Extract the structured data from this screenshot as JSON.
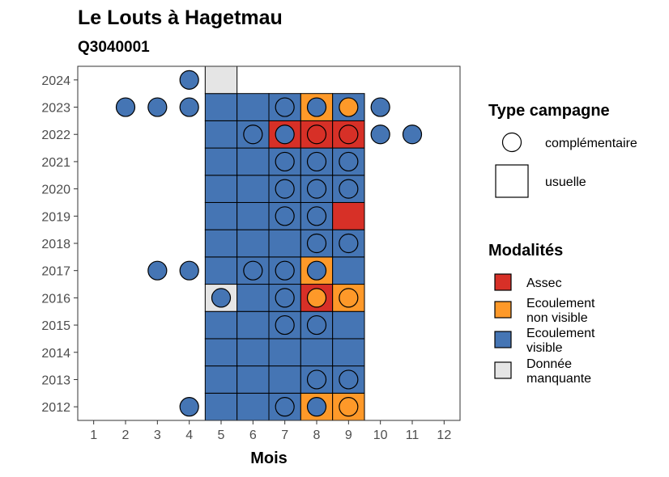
{
  "title": "Le Louts à Hagetmau",
  "subtitle": "Q3040001",
  "chart_data": {
    "type": "heatmap",
    "title": "Le Louts à Hagetmau",
    "subtitle": "Q3040001",
    "xlabel": "Mois",
    "ylabel": "",
    "x_ticks": [
      "1",
      "2",
      "3",
      "4",
      "5",
      "6",
      "7",
      "8",
      "9",
      "10",
      "11",
      "12"
    ],
    "y_ticks": [
      "2012",
      "2013",
      "2014",
      "2015",
      "2016",
      "2017",
      "2018",
      "2019",
      "2020",
      "2021",
      "2022",
      "2023",
      "2024"
    ],
    "xlim": [
      0.5,
      12.5
    ],
    "ylim": [
      2011.5,
      2024.5
    ],
    "grid": false,
    "legend_position": "right",
    "legend_shape": {
      "title": "Type campagne",
      "items": [
        {
          "label": "complémentaire",
          "shape": "circle"
        },
        {
          "label": "usuelle",
          "shape": "square"
        }
      ]
    },
    "legend_fill": {
      "title": "Modalités",
      "items": [
        {
          "key": "assec",
          "label_lines": [
            "Assec"
          ],
          "color": "#d73027"
        },
        {
          "key": "nonvisible",
          "label_lines": [
            "Ecoulement",
            "non visible"
          ],
          "color": "#fe9929"
        },
        {
          "key": "visible",
          "label_lines": [
            "Ecoulement",
            "visible"
          ],
          "color": "#4575b4"
        },
        {
          "key": "missing",
          "label_lines": [
            "Donnée",
            "manquante"
          ],
          "color": "#e5e5e5"
        }
      ]
    },
    "usuelle": [
      {
        "year": 2012,
        "months": [
          5,
          6,
          7,
          8,
          9
        ],
        "values": [
          "visible",
          "visible",
          "visible",
          "nonvisible",
          "nonvisible"
        ]
      },
      {
        "year": 2013,
        "months": [
          5,
          6,
          7,
          8,
          9
        ],
        "values": [
          "visible",
          "visible",
          "visible",
          "visible",
          "visible"
        ]
      },
      {
        "year": 2014,
        "months": [
          5,
          6,
          7,
          8,
          9
        ],
        "values": [
          "visible",
          "visible",
          "visible",
          "visible",
          "visible"
        ]
      },
      {
        "year": 2015,
        "months": [
          5,
          6,
          7,
          8,
          9
        ],
        "values": [
          "visible",
          "visible",
          "visible",
          "visible",
          "visible"
        ]
      },
      {
        "year": 2016,
        "months": [
          5,
          6,
          7,
          8,
          9
        ],
        "values": [
          "missing",
          "visible",
          "visible",
          "assec",
          "nonvisible"
        ]
      },
      {
        "year": 2017,
        "months": [
          5,
          6,
          7,
          8,
          9
        ],
        "values": [
          "visible",
          "visible",
          "visible",
          "nonvisible",
          "visible"
        ]
      },
      {
        "year": 2018,
        "months": [
          5,
          6,
          7,
          8,
          9
        ],
        "values": [
          "visible",
          "visible",
          "visible",
          "visible",
          "visible"
        ]
      },
      {
        "year": 2019,
        "months": [
          5,
          6,
          7,
          8,
          9
        ],
        "values": [
          "visible",
          "visible",
          "visible",
          "visible",
          "assec"
        ]
      },
      {
        "year": 2020,
        "months": [
          5,
          6,
          7,
          8,
          9
        ],
        "values": [
          "visible",
          "visible",
          "visible",
          "visible",
          "visible"
        ]
      },
      {
        "year": 2021,
        "months": [
          5,
          6,
          7,
          8,
          9
        ],
        "values": [
          "visible",
          "visible",
          "visible",
          "visible",
          "visible"
        ]
      },
      {
        "year": 2022,
        "months": [
          5,
          6,
          7,
          8,
          9
        ],
        "values": [
          "visible",
          "visible",
          "assec",
          "assec",
          "assec"
        ]
      },
      {
        "year": 2023,
        "months": [
          5,
          6,
          7,
          8,
          9
        ],
        "values": [
          "visible",
          "visible",
          "visible",
          "nonvisible",
          "visible"
        ]
      },
      {
        "year": 2024,
        "months": [
          5
        ],
        "values": [
          "missing"
        ]
      }
    ],
    "complementaire": [
      {
        "year": 2012,
        "month": 4,
        "value": "visible"
      },
      {
        "year": 2012,
        "month": 7,
        "value": "visible"
      },
      {
        "year": 2012,
        "month": 8,
        "value": "visible"
      },
      {
        "year": 2012,
        "month": 9,
        "value": "nonvisible"
      },
      {
        "year": 2013,
        "month": 8,
        "value": "visible"
      },
      {
        "year": 2013,
        "month": 9,
        "value": "visible"
      },
      {
        "year": 2015,
        "month": 7,
        "value": "visible"
      },
      {
        "year": 2015,
        "month": 8,
        "value": "visible"
      },
      {
        "year": 2016,
        "month": 5,
        "value": "visible"
      },
      {
        "year": 2016,
        "month": 7,
        "value": "visible"
      },
      {
        "year": 2016,
        "month": 8,
        "value": "nonvisible"
      },
      {
        "year": 2016,
        "month": 9,
        "value": "nonvisible"
      },
      {
        "year": 2017,
        "month": 3,
        "value": "visible"
      },
      {
        "year": 2017,
        "month": 4,
        "value": "visible"
      },
      {
        "year": 2017,
        "month": 6,
        "value": "visible"
      },
      {
        "year": 2017,
        "month": 7,
        "value": "visible"
      },
      {
        "year": 2017,
        "month": 8,
        "value": "visible"
      },
      {
        "year": 2018,
        "month": 8,
        "value": "visible"
      },
      {
        "year": 2018,
        "month": 9,
        "value": "visible"
      },
      {
        "year": 2019,
        "month": 7,
        "value": "visible"
      },
      {
        "year": 2019,
        "month": 8,
        "value": "visible"
      },
      {
        "year": 2020,
        "month": 7,
        "value": "visible"
      },
      {
        "year": 2020,
        "month": 8,
        "value": "visible"
      },
      {
        "year": 2020,
        "month": 9,
        "value": "visible"
      },
      {
        "year": 2021,
        "month": 7,
        "value": "visible"
      },
      {
        "year": 2021,
        "month": 8,
        "value": "visible"
      },
      {
        "year": 2021,
        "month": 9,
        "value": "visible"
      },
      {
        "year": 2022,
        "month": 6,
        "value": "visible"
      },
      {
        "year": 2022,
        "month": 7,
        "value": "visible"
      },
      {
        "year": 2022,
        "month": 8,
        "value": "assec"
      },
      {
        "year": 2022,
        "month": 9,
        "value": "assec"
      },
      {
        "year": 2022,
        "month": 10,
        "value": "visible"
      },
      {
        "year": 2022,
        "month": 11,
        "value": "visible"
      },
      {
        "year": 2023,
        "month": 2,
        "value": "visible"
      },
      {
        "year": 2023,
        "month": 3,
        "value": "visible"
      },
      {
        "year": 2023,
        "month": 4,
        "value": "visible"
      },
      {
        "year": 2023,
        "month": 7,
        "value": "visible"
      },
      {
        "year": 2023,
        "month": 8,
        "value": "visible"
      },
      {
        "year": 2023,
        "month": 9,
        "value": "nonvisible"
      },
      {
        "year": 2023,
        "month": 10,
        "value": "visible"
      },
      {
        "year": 2024,
        "month": 4,
        "value": "visible"
      }
    ]
  }
}
